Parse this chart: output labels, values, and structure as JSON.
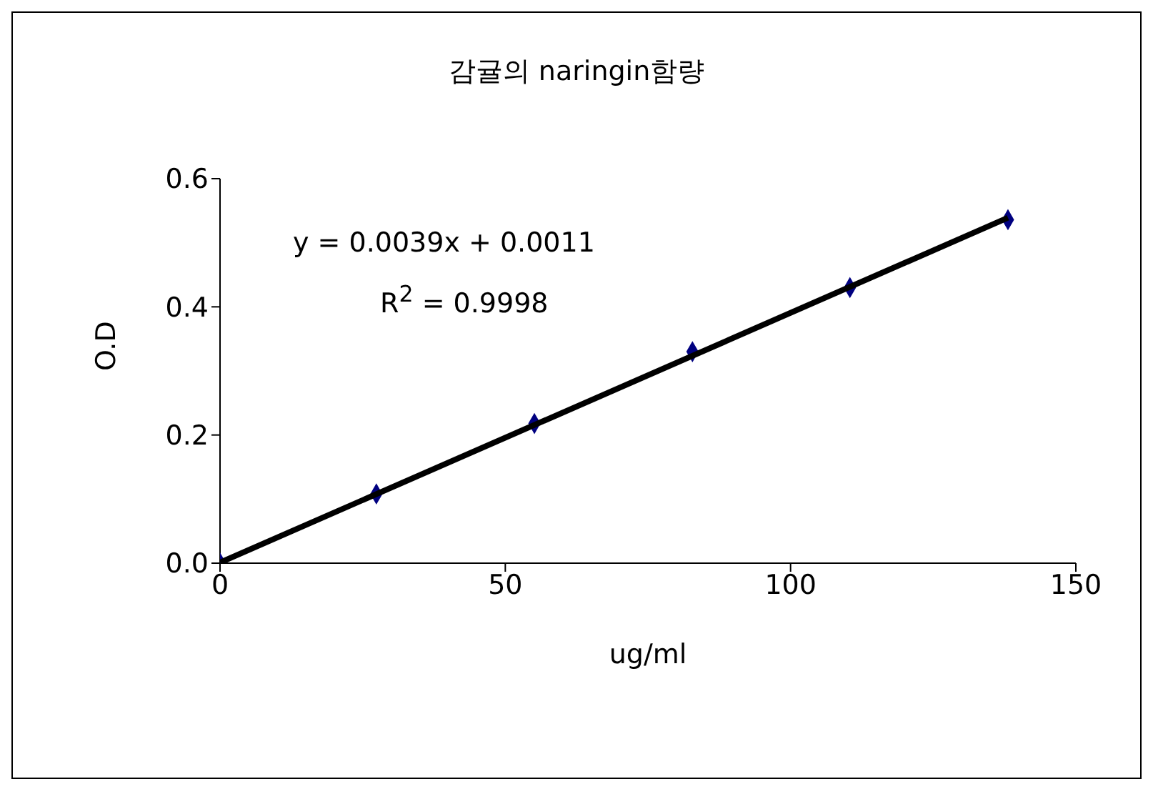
{
  "chart_data": {
    "type": "scatter",
    "title": "감귤의 naringin함량",
    "xlabel": "ug/ml",
    "ylabel": "O.D",
    "xlim": [
      0,
      150
    ],
    "xticks": [
      0,
      50,
      100,
      150
    ],
    "ylim": [
      0,
      0.6
    ],
    "yticks": [
      {
        "value": 0,
        "label": "0.0"
      },
      {
        "value": 0.2,
        "label": "0.2"
      },
      {
        "value": 0.4,
        "label": "0.4"
      },
      {
        "value": 0.6,
        "label": "0.6"
      }
    ],
    "marker": "diamond",
    "grid": false,
    "legend": false,
    "series": [
      {
        "color": "#000080",
        "x": [
          0,
          27.4,
          55.1,
          82.8,
          110.4,
          138.1
        ],
        "values": [
          0,
          0.108,
          0.218,
          0.33,
          0.43,
          0.536
        ]
      },
      {
        "type": "line",
        "marker": "none",
        "color": "#000000",
        "x": [
          0,
          138.1
        ],
        "values": [
          0.001,
          0.539
        ]
      }
    ],
    "annotations": [
      "y = 0.0039x + 0.0011",
      "R$^{2}$ = 0.9998"
    ]
  }
}
